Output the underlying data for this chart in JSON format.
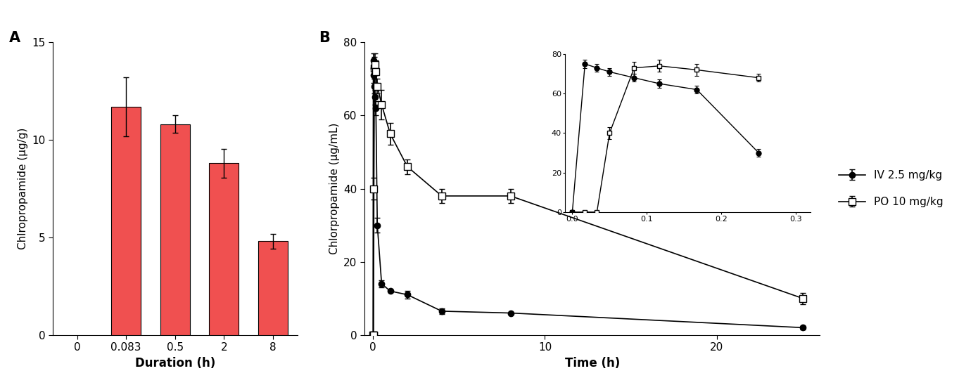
{
  "panel_A": {
    "label": "A",
    "categories": [
      "0",
      "0.083",
      "0.5",
      "2",
      "8"
    ],
    "values": [
      0,
      11.7,
      10.8,
      8.8,
      4.8
    ],
    "errors": [
      0,
      1.5,
      0.45,
      0.75,
      0.38
    ],
    "bar_color": "#F05050",
    "ylabel": "Chlropropamide (μg/g)",
    "xlabel": "Duration (h)",
    "ylim": [
      0,
      15
    ],
    "yticks": [
      0,
      5,
      10,
      15
    ]
  },
  "panel_B": {
    "label": "B",
    "ylabel": "Chlorpropamide (μg/mL)",
    "xlabel": "Time (h)",
    "ylim": [
      0,
      80
    ],
    "yticks": [
      0,
      20,
      40,
      60,
      80
    ],
    "xlim": [
      -0.5,
      26
    ],
    "xticks": [
      0,
      10,
      20
    ],
    "iv": {
      "label": "IV 2.5 mg/kg",
      "time": [
        0,
        0.017,
        0.033,
        0.05,
        0.083,
        0.117,
        0.167,
        0.25,
        0.5,
        1.0,
        2.0,
        4.0,
        8.0,
        25.0
      ],
      "values": [
        0,
        75.0,
        73.0,
        71.0,
        68.0,
        65.0,
        62.0,
        30.0,
        14.0,
        12.0,
        11.0,
        6.5,
        6.0,
        2.0
      ],
      "errors": [
        0,
        2.0,
        2.0,
        2.0,
        2.0,
        2.0,
        2.0,
        2.0,
        1.0,
        0,
        1.0,
        0.8,
        0,
        0.5
      ]
    },
    "po": {
      "label": "PO 10 mg/kg",
      "time": [
        0,
        0.017,
        0.033,
        0.05,
        0.083,
        0.117,
        0.167,
        0.25,
        0.5,
        1.0,
        2.0,
        4.0,
        8.0,
        25.0
      ],
      "values": [
        0,
        0,
        0,
        40.0,
        73.0,
        74.0,
        72.0,
        68.0,
        63.0,
        55.0,
        46.0,
        38.0,
        38.0,
        10.0
      ],
      "errors": [
        0,
        0,
        0,
        3.0,
        3.0,
        3.0,
        3.0,
        2.0,
        4.0,
        3.0,
        2.0,
        2.0,
        2.0,
        1.5
      ]
    },
    "inset": {
      "xlim": [
        -0.01,
        0.32
      ],
      "ylim": [
        0,
        80
      ],
      "yticks": [
        0,
        20,
        40,
        60,
        80
      ],
      "xticks": [
        0.0,
        0.1,
        0.2,
        0.3
      ],
      "xticklabels": [
        "0.0",
        "0.1",
        "0.2",
        "0.3"
      ],
      "iv_time": [
        0,
        0.017,
        0.033,
        0.05,
        0.083,
        0.117,
        0.167,
        0.25
      ],
      "iv_values": [
        0,
        75.0,
        73.0,
        71.0,
        68.0,
        65.0,
        62.0,
        30.0
      ],
      "iv_errors": [
        0,
        2.0,
        2.0,
        2.0,
        2.0,
        2.0,
        2.0,
        2.0
      ],
      "po_time": [
        0,
        0.017,
        0.033,
        0.05,
        0.083,
        0.117,
        0.167,
        0.25
      ],
      "po_values": [
        0,
        0,
        0,
        40.0,
        73.0,
        74.0,
        72.0,
        68.0
      ],
      "po_errors": [
        0,
        0,
        0,
        3.0,
        3.0,
        3.0,
        3.0,
        2.0
      ]
    }
  }
}
